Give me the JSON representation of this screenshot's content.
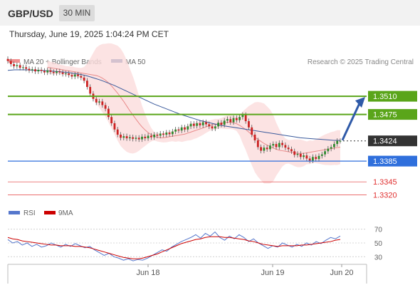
{
  "header": {
    "pair": "GBP/USD",
    "timeframe": "30 MIN"
  },
  "datetime": "Thursday, June 19, 2025 1:04:24 PM CET",
  "legend": {
    "ma20": "MA 20 + Bollinger Bands",
    "ma50": "MA 50",
    "source": "Research © 2025 Trading Central"
  },
  "rsi_legend": {
    "rsi": "RSI",
    "ma": "9MA"
  },
  "colors": {
    "up_candle": "#2e8b2e",
    "down_candle": "#cc2222",
    "bollinger_fill": "#fbdcdc",
    "ma20": "#e88a8a",
    "ma50": "#3a5a9c",
    "resistance": "#5aa51a",
    "support": "#2f6fdc",
    "target": "#e03030",
    "last_price": "#333333",
    "arrow": "#2f5aa8",
    "rsi": "#5577cc",
    "rsi_ma": "#cc0000"
  },
  "chart_data": {
    "type": "candlestick",
    "instrument": "GBP/USD",
    "interval": "30 MIN",
    "ylim": [
      1.33,
      1.355
    ],
    "x_tick_labels": [
      "Jun 18",
      "Jun 19",
      "Jun 20"
    ],
    "levels": [
      {
        "value": 1.351,
        "label": "1.3510",
        "kind": "resistance"
      },
      {
        "value": 1.3475,
        "label": "1.3475",
        "kind": "resistance"
      },
      {
        "value": 1.3424,
        "label": "1.3424",
        "kind": "last"
      },
      {
        "value": 1.3385,
        "label": "1.3385",
        "kind": "support"
      },
      {
        "value": 1.3345,
        "label": "1.3345",
        "kind": "target"
      },
      {
        "value": 1.332,
        "label": "1.3320",
        "kind": "target"
      }
    ],
    "close": [
      1.3578,
      1.3572,
      1.3568,
      1.357,
      1.3565,
      1.3566,
      1.3563,
      1.356,
      1.3562,
      1.3558,
      1.3561,
      1.3559,
      1.3556,
      1.356,
      1.3557,
      1.3555,
      1.3558,
      1.3556,
      1.3553,
      1.3554,
      1.3551,
      1.3548,
      1.3552,
      1.3549,
      1.3546,
      1.354,
      1.3528,
      1.3515,
      1.3505,
      1.3498,
      1.35,
      1.3493,
      1.3486,
      1.347,
      1.3458,
      1.3446,
      1.3436,
      1.343,
      1.3433,
      1.3429,
      1.3431,
      1.3428,
      1.343,
      1.3427,
      1.3432,
      1.3429,
      1.3434,
      1.3431,
      1.3436,
      1.3434,
      1.3438,
      1.3436,
      1.344,
      1.3437,
      1.3442,
      1.3446,
      1.3444,
      1.345,
      1.3446,
      1.3452,
      1.3457,
      1.3453,
      1.3458,
      1.3454,
      1.346,
      1.3456,
      1.3452,
      1.3448,
      1.3452,
      1.3459,
      1.3455,
      1.3463,
      1.3466,
      1.346,
      1.3468,
      1.3464,
      1.347,
      1.3474,
      1.3462,
      1.345,
      1.3436,
      1.3425,
      1.3412,
      1.3405,
      1.3411,
      1.3408,
      1.3415,
      1.3418,
      1.3412,
      1.342,
      1.3416,
      1.3411,
      1.3408,
      1.3404,
      1.3397,
      1.3399,
      1.3393,
      1.3396,
      1.339,
      1.3386,
      1.3393,
      1.3389,
      1.3395,
      1.3398,
      1.3404,
      1.3409,
      1.3412,
      1.3418,
      1.3424,
      1.3424
    ],
    "ma20": [
      1.3566,
      1.3565,
      1.3564,
      1.3563,
      1.3562,
      1.3561,
      1.356,
      1.3559,
      1.3558,
      1.3557,
      1.3556,
      1.3555,
      1.3554,
      1.3553,
      1.3552,
      1.3551,
      1.355,
      1.3548,
      1.3545,
      1.3541,
      1.3536,
      1.353,
      1.3523,
      1.3516,
      1.3508,
      1.35,
      1.3491,
      1.3482,
      1.3474,
      1.3466,
      1.3458,
      1.3451,
      1.3445,
      1.344,
      1.3436,
      1.3433,
      1.3431,
      1.343,
      1.343,
      1.3431,
      1.3432,
      1.3433,
      1.3434,
      1.3435,
      1.3436,
      1.3437,
      1.3439,
      1.3441,
      1.3443,
      1.3445,
      1.3447,
      1.3449,
      1.3451,
      1.3453,
      1.3455,
      1.3456,
      1.3457,
      1.3458,
      1.3459,
      1.346,
      1.346,
      1.3459,
      1.3457,
      1.3454,
      1.345,
      1.3446,
      1.3441,
      1.3436,
      1.3431,
      1.3427,
      1.3423,
      1.3419,
      1.3416,
      1.3413,
      1.341,
      1.3408,
      1.3406,
      1.3405,
      1.3404,
      1.3403,
      1.3402,
      1.3401,
      1.34,
      1.34,
      1.34,
      1.3401,
      1.3402,
      1.3403,
      1.3404,
      1.3405,
      1.3406,
      1.3407,
      1.3408,
      1.3409,
      1.341,
      1.3411,
      1.3412
    ],
    "ma50": [
      1.356,
      1.3561,
      1.3561,
      1.3561,
      1.356,
      1.356,
      1.3559,
      1.3558,
      1.3557,
      1.3556,
      1.3554,
      1.3552,
      1.3549,
      1.3545,
      1.3541,
      1.3536,
      1.3531,
      1.3525,
      1.3519,
      1.3513,
      1.3507,
      1.3501,
      1.3495,
      1.349,
      1.3485,
      1.348,
      1.3475,
      1.3471,
      1.3467,
      1.3463,
      1.346,
      1.3457,
      1.3454,
      1.3452,
      1.345,
      1.3448,
      1.3446,
      1.3444,
      1.3442,
      1.344,
      1.3438,
      1.3436,
      1.3434,
      1.3432,
      1.343,
      1.3429,
      1.3428,
      1.3427,
      1.3426,
      1.3425,
      1.3425
    ],
    "rsi": {
      "ylim": [
        20,
        80
      ],
      "ticks": [
        30,
        50,
        70
      ],
      "rsi": [
        55,
        50,
        52,
        47,
        50,
        45,
        48,
        44,
        46,
        50,
        47,
        44,
        48,
        45,
        49,
        46,
        43,
        45,
        40,
        36,
        32,
        35,
        30,
        28,
        25,
        27,
        24,
        26,
        25,
        28,
        32,
        36,
        40,
        38,
        44,
        48,
        52,
        55,
        58,
        62,
        57,
        64,
        60,
        66,
        58,
        54,
        60,
        56,
        62,
        58,
        52,
        56,
        50,
        46,
        42,
        46,
        44,
        50,
        47,
        44,
        48,
        45,
        50,
        47,
        52,
        49,
        54,
        58,
        56,
        60
      ],
      "ma": [
        58,
        56,
        55,
        53,
        52,
        51,
        50,
        49,
        48,
        47,
        47,
        46,
        46,
        46,
        45,
        45,
        44,
        43,
        41,
        39,
        37,
        35,
        33,
        31,
        29,
        28,
        27,
        27,
        28,
        30,
        32,
        34,
        37,
        40,
        43,
        46,
        49,
        51,
        53,
        55,
        56,
        58,
        59,
        59,
        59,
        58,
        58,
        57,
        56,
        55,
        53,
        52,
        50,
        48,
        47,
        46,
        45,
        46,
        46,
        46,
        46,
        47,
        47,
        48,
        49,
        50,
        51,
        52,
        54,
        55
      ]
    }
  }
}
